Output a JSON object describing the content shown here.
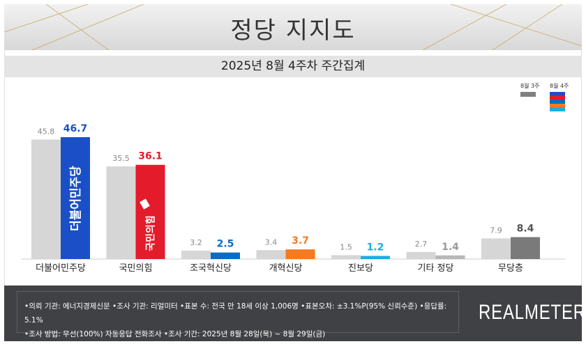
{
  "header": {
    "title": "정당 지지도",
    "subtitle": "2025년 8월 4주차 주간집계"
  },
  "legend": {
    "prev": "8월 3주",
    "cur": "8월 4주"
  },
  "chart_data": {
    "type": "bar",
    "title": "정당 지지도",
    "subtitle": "2025년 8월 4주차 주간집계",
    "categories": [
      "더불어민주당",
      "국민의힘",
      "조국혁신당",
      "개혁신당",
      "진보당",
      "기타 정당",
      "무당층"
    ],
    "series": [
      {
        "name": "8월 3주",
        "values": [
          45.8,
          35.5,
          3.2,
          3.4,
          1.5,
          2.7,
          7.9
        ],
        "color": "#d6d6d6"
      },
      {
        "name": "8월 4주",
        "values": [
          46.7,
          36.1,
          2.5,
          3.7,
          1.2,
          1.4,
          8.4
        ],
        "colors": [
          "#1a4fc8",
          "#e31b2b",
          "#0b6cc0",
          "#f57a20",
          "#1aaee2",
          "#b8b8b8",
          "#7a7a7a"
        ],
        "label_colors": [
          "#1a4fc8",
          "#e31b2b",
          "#0b6cc0",
          "#f57a20",
          "#1aaee2",
          "#999999",
          "#555555"
        ]
      }
    ],
    "logos": [
      "더불어민주당",
      "국민의힘"
    ],
    "ylim": [
      0,
      50
    ],
    "grid": false,
    "legend_position": "top-right"
  },
  "footer": {
    "line1": "•의뢰 기관: 에너지경제신문  •조사 기관: 리얼미터 •표본 수: 전국 만 18세 이상 1,006명 •표본오차: ±3.1%P(95% 신뢰수준) •응답률: 5.1%",
    "line2": "•조사 방법: 무선(100%) 자동응답 전화조사 •조사 기간: 2025년 8월 28일(목) ~ 8월 29일(금)",
    "brand": "REALMETER"
  }
}
